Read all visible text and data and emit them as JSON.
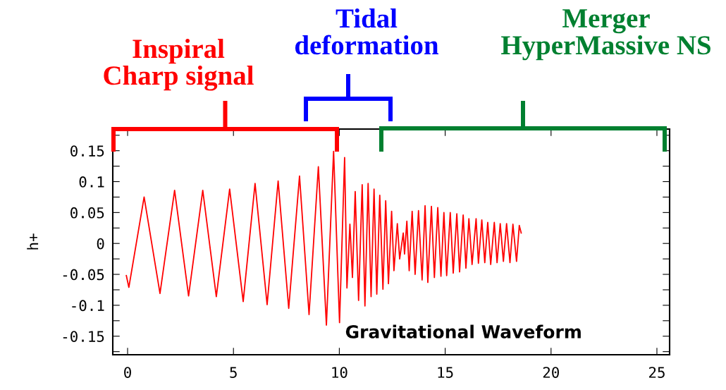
{
  "chart_data": {
    "type": "line",
    "ylabel": "h+",
    "x": [
      -0.06,
      0.06,
      0.78,
      1.53,
      2.22,
      2.88,
      3.55,
      4.19,
      4.82,
      5.46,
      6.02,
      6.59,
      7.11,
      7.61,
      8.12,
      8.57,
      9.01,
      9.39,
      9.73,
      10.01,
      10.25,
      10.36,
      10.5,
      10.62,
      10.75,
      10.91,
      11.08,
      11.21,
      11.36,
      11.5,
      11.64,
      11.77,
      11.91,
      12.06,
      12.19,
      12.32,
      12.47,
      12.58,
      12.74,
      12.85,
      13.02,
      13.08,
      13.19,
      13.3,
      13.44,
      13.58,
      13.74,
      13.91,
      14.05,
      14.18,
      14.35,
      14.49,
      14.65,
      14.8,
      14.94,
      15.07,
      15.24,
      15.38,
      15.55,
      15.68,
      15.85,
      15.98,
      16.12,
      16.27,
      16.46,
      16.57,
      16.73,
      16.87,
      17.01,
      17.15,
      17.32,
      17.45,
      17.6,
      17.75,
      17.9,
      18.06,
      18.2,
      18.37,
      18.5,
      18.59
    ],
    "series": [
      {
        "color": "#ff0000",
        "values": [
          -0.052,
          -0.071,
          0.075,
          -0.081,
          0.086,
          -0.085,
          0.086,
          -0.086,
          0.088,
          -0.094,
          0.097,
          -0.099,
          0.101,
          -0.105,
          0.109,
          -0.115,
          0.124,
          -0.132,
          0.149,
          -0.128,
          0.139,
          -0.072,
          0.031,
          -0.055,
          0.084,
          -0.092,
          0.095,
          -0.101,
          0.097,
          -0.086,
          0.088,
          -0.082,
          0.078,
          -0.074,
          0.069,
          -0.065,
          0.052,
          -0.044,
          0.032,
          -0.025,
          0.017,
          -0.017,
          0.036,
          -0.044,
          0.052,
          -0.05,
          0.053,
          -0.059,
          0.061,
          -0.063,
          0.06,
          -0.055,
          0.058,
          -0.053,
          0.05,
          -0.052,
          0.05,
          -0.048,
          0.048,
          -0.046,
          0.046,
          -0.04,
          0.04,
          -0.034,
          0.04,
          -0.032,
          0.038,
          -0.031,
          0.034,
          -0.034,
          0.034,
          -0.031,
          0.032,
          -0.029,
          0.032,
          -0.031,
          0.031,
          -0.029,
          0.029,
          0.017
        ]
      }
    ],
    "xlim": [
      -0.7,
      25.6
    ],
    "xticks": [
      0,
      5,
      10,
      15,
      20,
      25
    ],
    "ylim": [
      -0.18,
      0.185
    ],
    "yticks": [
      {
        "value": -0.175,
        "label": null
      },
      -0.15,
      {
        "value": -0.125,
        "label": null
      },
      -0.1,
      {
        "value": -0.075,
        "label": null
      },
      -0.05,
      {
        "value": -0.025,
        "label": null
      },
      0,
      {
        "value": 0.025,
        "label": null
      },
      0.05,
      {
        "value": 0.075,
        "label": null
      },
      0.1,
      {
        "value": 0.125,
        "label": null
      },
      0.15,
      {
        "value": 0.175,
        "label": null
      }
    ],
    "annotations": [
      "Inspiral\nCharp signal",
      "Tidal\ndeformation",
      "Merger\nHyperMassive NS",
      "Gravitational Waveform"
    ],
    "grid": false,
    "legend": false,
    "marker": "none",
    "line_style": "solid"
  }
}
